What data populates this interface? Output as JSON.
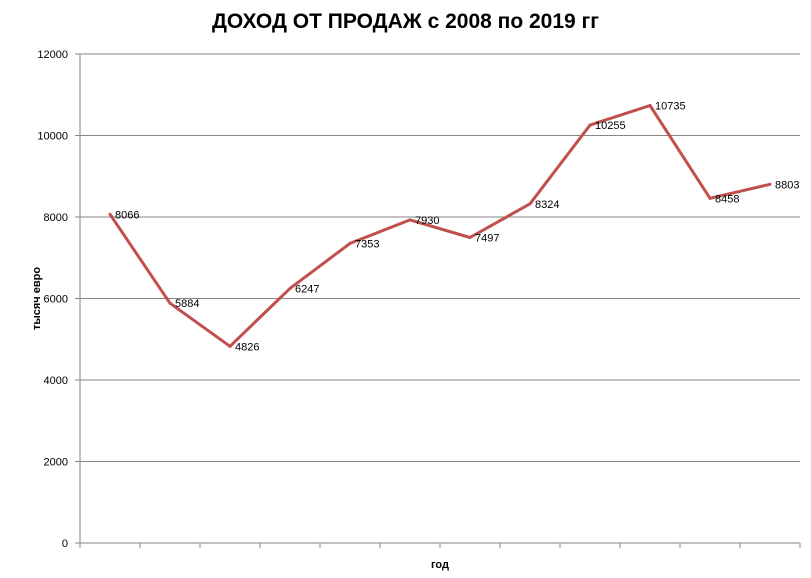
{
  "chart_data": {
    "type": "line",
    "title": "ДОХОД ОТ ПРОДАЖ с 2008 по 2019 гг",
    "xlabel": "год",
    "ylabel": "тысяч евро",
    "categories": [
      "",
      "",
      "",
      "",
      "",
      "",
      "",
      "",
      "",
      "",
      "",
      ""
    ],
    "series": [
      {
        "values": [
          8066,
          5884,
          4826,
          6247,
          7353,
          7930,
          7497,
          8324,
          10255,
          10735,
          8458,
          8803
        ]
      }
    ],
    "data_labels": [
      "8066",
      "5884",
      "4826",
      "6247",
      "7353",
      "7930",
      "7497",
      "8324",
      "10255",
      "10735",
      "8458",
      "8803"
    ],
    "ylim": [
      0,
      12000
    ],
    "yticks": [
      0,
      2000,
      4000,
      6000,
      8000,
      10000,
      12000
    ],
    "ytick_labels": [
      "0",
      "2000",
      "4000",
      "6000",
      "8000",
      "10000",
      "12000"
    ],
    "grid": true,
    "legend": "none",
    "colors": {
      "line": "#c0504d",
      "grid": "#868686",
      "axis": "#868686"
    }
  }
}
